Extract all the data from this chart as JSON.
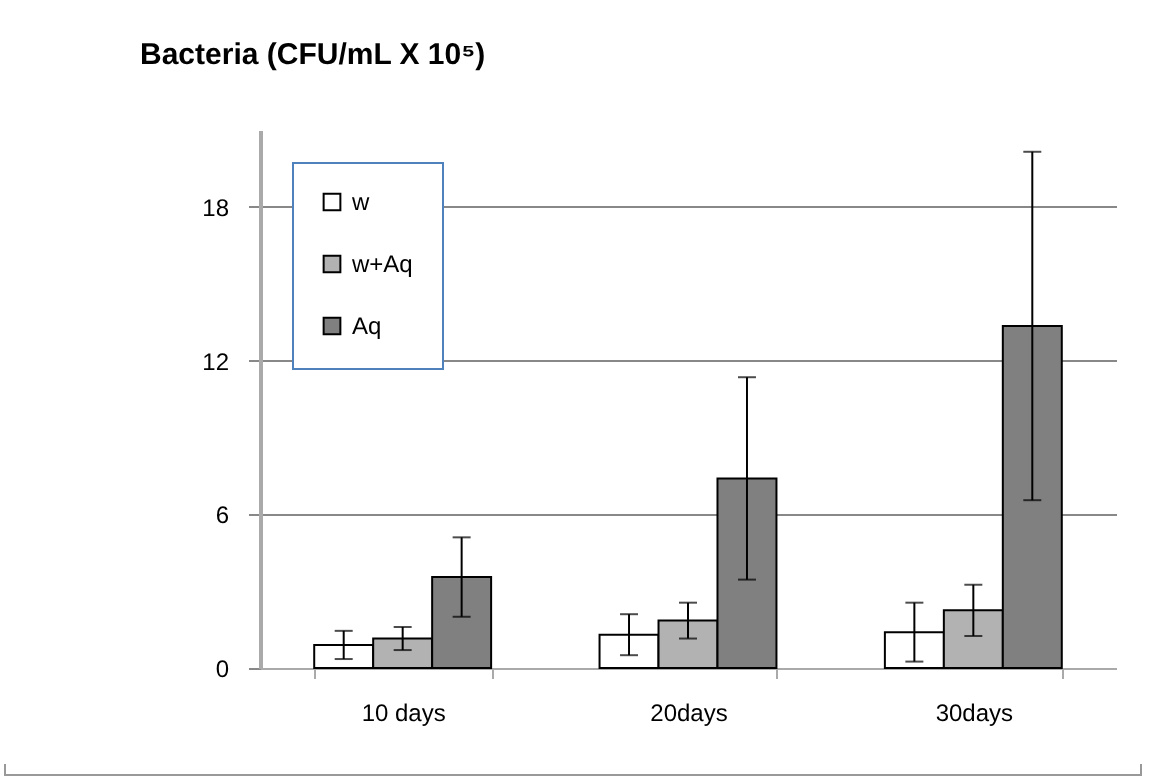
{
  "chart_data": {
    "type": "bar",
    "title": "Bacteria (CFU/mL X 10⁵)",
    "categories": [
      "10 days",
      "20days",
      "30days"
    ],
    "series": [
      {
        "name": "w",
        "color": "#ffffff",
        "values": [
          0.9,
          1.3,
          1.4
        ],
        "errors": [
          0.55,
          0.8,
          1.15
        ]
      },
      {
        "name": "w+Aq",
        "color": "#b2b2b2",
        "values": [
          1.15,
          1.85,
          2.25
        ],
        "errors": [
          0.45,
          0.7,
          1.0
        ]
      },
      {
        "name": "Aq",
        "color": "#808080",
        "values": [
          3.55,
          7.4,
          13.35
        ],
        "errors": [
          1.55,
          3.95,
          6.8
        ]
      }
    ],
    "ylim": [
      0,
      21
    ],
    "yticks": [
      0,
      6,
      12,
      18
    ],
    "grid": "y",
    "legend": "top left"
  }
}
